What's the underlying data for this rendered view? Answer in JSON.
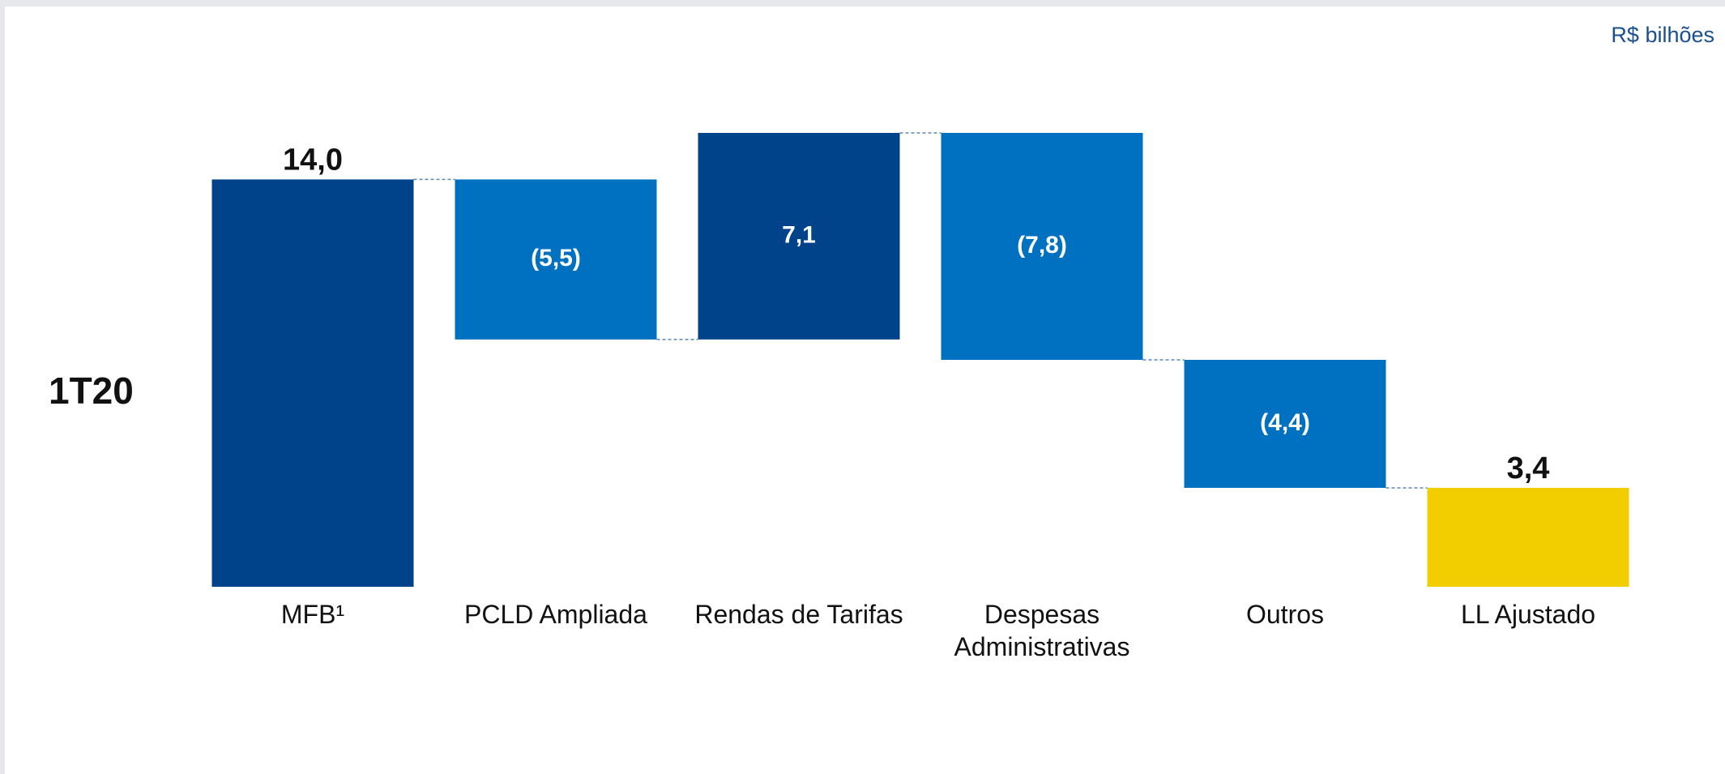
{
  "chart_data": {
    "type": "waterfall",
    "unit_label": "R$ bilhões",
    "period_label": "1T20",
    "categories": [
      "MFB¹",
      "PCLD Ampliada",
      "Rendas de Tarifas",
      "Despesas Administrativas",
      "Outros",
      "LL Ajustado"
    ],
    "values": [
      14.0,
      -5.5,
      7.1,
      -7.8,
      -4.4,
      3.4
    ],
    "value_labels": [
      "14,0",
      "(5,5)",
      "7,1",
      "(7,8)",
      "(4,4)",
      "3,4"
    ],
    "measure": [
      "absolute",
      "relative",
      "relative",
      "relative",
      "relative",
      "total"
    ],
    "colors": [
      "#00438a",
      "#0070c0",
      "#00438a",
      "#0070c0",
      "#0070c0",
      "#f2cd00"
    ]
  }
}
